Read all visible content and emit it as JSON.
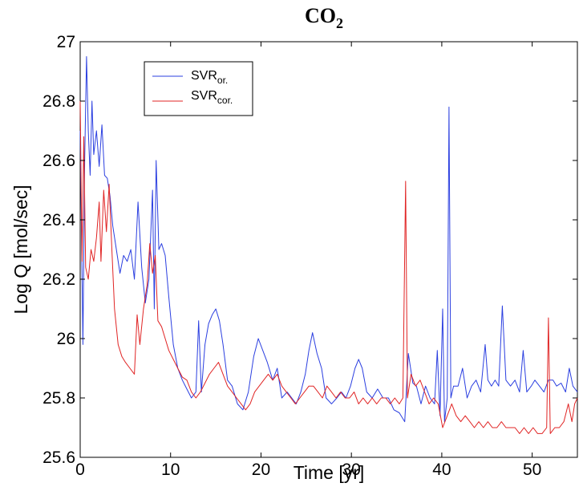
{
  "chart_data": {
    "type": "line",
    "title": "CO2",
    "title_main": "CO",
    "title_sub": "2",
    "xlabel": "Time [yr]",
    "ylabel": "Log Q [mol/sec]",
    "xlim": [
      0,
      55
    ],
    "ylim": [
      25.6,
      27
    ],
    "xticks": [
      0,
      10,
      20,
      30,
      40,
      50
    ],
    "yticks": [
      25.6,
      25.8,
      26,
      26.2,
      26.4,
      26.6,
      26.8,
      27
    ],
    "xtick_labels": [
      "0",
      "10",
      "20",
      "30",
      "40",
      "50"
    ],
    "ytick_labels": [
      "25.6",
      "25.8",
      "26",
      "26.2",
      "26.4",
      "26.6",
      "26.8",
      "27"
    ],
    "grid": false,
    "legend_position": "top-left",
    "series": [
      {
        "name": "SVR_or.",
        "legend_main": "SVR",
        "legend_sub": "or.",
        "color": "#2b3fe0",
        "points": [
          [
            0.0,
            26.7
          ],
          [
            0.3,
            25.98
          ],
          [
            0.5,
            26.6
          ],
          [
            0.7,
            26.95
          ],
          [
            0.9,
            26.7
          ],
          [
            1.1,
            26.55
          ],
          [
            1.3,
            26.8
          ],
          [
            1.5,
            26.62
          ],
          [
            1.8,
            26.7
          ],
          [
            2.1,
            26.58
          ],
          [
            2.4,
            26.72
          ],
          [
            2.7,
            26.55
          ],
          [
            3.0,
            26.54
          ],
          [
            3.3,
            26.48
          ],
          [
            3.6,
            26.38
          ],
          [
            4.0,
            26.3
          ],
          [
            4.4,
            26.22
          ],
          [
            4.8,
            26.28
          ],
          [
            5.2,
            26.26
          ],
          [
            5.6,
            26.3
          ],
          [
            6.0,
            26.2
          ],
          [
            6.4,
            26.46
          ],
          [
            6.8,
            26.24
          ],
          [
            7.2,
            26.12
          ],
          [
            7.6,
            26.2
          ],
          [
            8.0,
            26.5
          ],
          [
            8.2,
            26.1
          ],
          [
            8.4,
            26.6
          ],
          [
            8.7,
            26.3
          ],
          [
            9.0,
            26.32
          ],
          [
            9.4,
            26.28
          ],
          [
            9.8,
            26.14
          ],
          [
            10.3,
            25.98
          ],
          [
            10.8,
            25.9
          ],
          [
            11.3,
            25.86
          ],
          [
            11.8,
            25.83
          ],
          [
            12.3,
            25.8
          ],
          [
            12.8,
            25.82
          ],
          [
            13.1,
            26.06
          ],
          [
            13.4,
            25.82
          ],
          [
            13.8,
            25.98
          ],
          [
            14.2,
            26.05
          ],
          [
            14.6,
            26.08
          ],
          [
            15.0,
            26.1
          ],
          [
            15.4,
            26.06
          ],
          [
            15.8,
            25.98
          ],
          [
            16.3,
            25.86
          ],
          [
            16.8,
            25.84
          ],
          [
            17.4,
            25.78
          ],
          [
            18.0,
            25.76
          ],
          [
            18.6,
            25.82
          ],
          [
            19.2,
            25.94
          ],
          [
            19.7,
            26.0
          ],
          [
            20.2,
            25.96
          ],
          [
            20.7,
            25.92
          ],
          [
            21.3,
            25.86
          ],
          [
            21.8,
            25.9
          ],
          [
            22.3,
            25.8
          ],
          [
            22.9,
            25.82
          ],
          [
            23.4,
            25.8
          ],
          [
            23.9,
            25.78
          ],
          [
            24.4,
            25.82
          ],
          [
            24.9,
            25.88
          ],
          [
            25.3,
            25.96
          ],
          [
            25.7,
            26.02
          ],
          [
            26.2,
            25.95
          ],
          [
            26.7,
            25.9
          ],
          [
            27.2,
            25.8
          ],
          [
            27.8,
            25.78
          ],
          [
            28.4,
            25.8
          ],
          [
            28.9,
            25.82
          ],
          [
            29.4,
            25.8
          ],
          [
            29.9,
            25.84
          ],
          [
            30.4,
            25.9
          ],
          [
            30.8,
            25.93
          ],
          [
            31.2,
            25.9
          ],
          [
            31.7,
            25.82
          ],
          [
            32.3,
            25.8
          ],
          [
            32.9,
            25.83
          ],
          [
            33.5,
            25.8
          ],
          [
            34.1,
            25.8
          ],
          [
            34.7,
            25.76
          ],
          [
            35.3,
            25.75
          ],
          [
            35.9,
            25.72
          ],
          [
            36.3,
            25.95
          ],
          [
            36.8,
            25.85
          ],
          [
            37.2,
            25.84
          ],
          [
            37.7,
            25.78
          ],
          [
            38.2,
            25.84
          ],
          [
            38.7,
            25.8
          ],
          [
            39.2,
            25.78
          ],
          [
            39.5,
            25.96
          ],
          [
            39.8,
            25.74
          ],
          [
            40.1,
            26.1
          ],
          [
            40.3,
            25.72
          ],
          [
            40.6,
            25.8
          ],
          [
            40.8,
            26.78
          ],
          [
            41.0,
            25.8
          ],
          [
            41.3,
            25.84
          ],
          [
            41.8,
            25.84
          ],
          [
            42.3,
            25.9
          ],
          [
            42.8,
            25.8
          ],
          [
            43.3,
            25.84
          ],
          [
            43.8,
            25.86
          ],
          [
            44.3,
            25.82
          ],
          [
            44.8,
            25.98
          ],
          [
            45.1,
            25.86
          ],
          [
            45.5,
            25.84
          ],
          [
            45.9,
            25.86
          ],
          [
            46.3,
            25.84
          ],
          [
            46.7,
            26.11
          ],
          [
            47.1,
            25.86
          ],
          [
            47.6,
            25.84
          ],
          [
            48.1,
            25.86
          ],
          [
            48.6,
            25.82
          ],
          [
            49.0,
            25.96
          ],
          [
            49.4,
            25.82
          ],
          [
            49.9,
            25.84
          ],
          [
            50.3,
            25.86
          ],
          [
            50.8,
            25.84
          ],
          [
            51.3,
            25.82
          ],
          [
            51.8,
            25.86
          ],
          [
            52.3,
            25.86
          ],
          [
            52.7,
            25.84
          ],
          [
            53.2,
            25.85
          ],
          [
            53.7,
            25.82
          ],
          [
            54.1,
            25.9
          ],
          [
            54.5,
            25.84
          ],
          [
            55.0,
            25.82
          ]
        ]
      },
      {
        "name": "SVR_cor.",
        "legend_main": "SVR",
        "legend_sub": "cor.",
        "color": "#e02424",
        "points": [
          [
            0.0,
            26.8
          ],
          [
            0.2,
            26.26
          ],
          [
            0.4,
            26.68
          ],
          [
            0.6,
            26.24
          ],
          [
            0.9,
            26.2
          ],
          [
            1.2,
            26.3
          ],
          [
            1.5,
            26.26
          ],
          [
            1.8,
            26.34
          ],
          [
            2.1,
            26.46
          ],
          [
            2.3,
            26.26
          ],
          [
            2.6,
            26.5
          ],
          [
            2.9,
            26.36
          ],
          [
            3.2,
            26.52
          ],
          [
            3.5,
            26.3
          ],
          [
            3.8,
            26.1
          ],
          [
            4.2,
            25.98
          ],
          [
            4.6,
            25.94
          ],
          [
            5.0,
            25.92
          ],
          [
            5.5,
            25.9
          ],
          [
            6.0,
            25.88
          ],
          [
            6.3,
            26.08
          ],
          [
            6.6,
            25.98
          ],
          [
            7.0,
            26.1
          ],
          [
            7.4,
            26.18
          ],
          [
            7.7,
            26.32
          ],
          [
            8.0,
            26.22
          ],
          [
            8.3,
            26.28
          ],
          [
            8.6,
            26.06
          ],
          [
            9.0,
            26.04
          ],
          [
            9.4,
            26.0
          ],
          [
            9.8,
            25.96
          ],
          [
            10.3,
            25.93
          ],
          [
            10.8,
            25.9
          ],
          [
            11.3,
            25.87
          ],
          [
            11.8,
            25.86
          ],
          [
            12.3,
            25.82
          ],
          [
            12.8,
            25.8
          ],
          [
            13.3,
            25.82
          ],
          [
            13.8,
            25.85
          ],
          [
            14.3,
            25.88
          ],
          [
            14.8,
            25.9
          ],
          [
            15.3,
            25.92
          ],
          [
            15.8,
            25.88
          ],
          [
            16.3,
            25.84
          ],
          [
            16.8,
            25.82
          ],
          [
            17.3,
            25.8
          ],
          [
            17.8,
            25.78
          ],
          [
            18.3,
            25.76
          ],
          [
            18.8,
            25.78
          ],
          [
            19.3,
            25.82
          ],
          [
            19.8,
            25.84
          ],
          [
            20.3,
            25.86
          ],
          [
            20.8,
            25.88
          ],
          [
            21.3,
            25.86
          ],
          [
            21.8,
            25.88
          ],
          [
            22.3,
            25.84
          ],
          [
            22.8,
            25.82
          ],
          [
            23.3,
            25.8
          ],
          [
            23.8,
            25.78
          ],
          [
            24.3,
            25.8
          ],
          [
            24.8,
            25.82
          ],
          [
            25.3,
            25.84
          ],
          [
            25.8,
            25.84
          ],
          [
            26.3,
            25.82
          ],
          [
            26.8,
            25.8
          ],
          [
            27.3,
            25.84
          ],
          [
            27.8,
            25.82
          ],
          [
            28.3,
            25.8
          ],
          [
            28.8,
            25.82
          ],
          [
            29.3,
            25.8
          ],
          [
            29.8,
            25.8
          ],
          [
            30.3,
            25.82
          ],
          [
            30.8,
            25.78
          ],
          [
            31.3,
            25.8
          ],
          [
            31.8,
            25.78
          ],
          [
            32.3,
            25.8
          ],
          [
            32.8,
            25.78
          ],
          [
            33.3,
            25.8
          ],
          [
            33.8,
            25.8
          ],
          [
            34.3,
            25.78
          ],
          [
            34.8,
            25.8
          ],
          [
            35.3,
            25.78
          ],
          [
            35.7,
            25.8
          ],
          [
            36.0,
            26.53
          ],
          [
            36.2,
            25.8
          ],
          [
            36.6,
            25.88
          ],
          [
            37.1,
            25.84
          ],
          [
            37.6,
            25.86
          ],
          [
            38.1,
            25.82
          ],
          [
            38.6,
            25.78
          ],
          [
            39.1,
            25.8
          ],
          [
            39.6,
            25.78
          ],
          [
            40.1,
            25.7
          ],
          [
            40.6,
            25.74
          ],
          [
            41.1,
            25.78
          ],
          [
            41.6,
            25.74
          ],
          [
            42.1,
            25.72
          ],
          [
            42.6,
            25.74
          ],
          [
            43.1,
            25.72
          ],
          [
            43.6,
            25.7
          ],
          [
            44.1,
            25.72
          ],
          [
            44.6,
            25.7
          ],
          [
            45.1,
            25.72
          ],
          [
            45.6,
            25.7
          ],
          [
            46.1,
            25.7
          ],
          [
            46.6,
            25.72
          ],
          [
            47.1,
            25.7
          ],
          [
            47.6,
            25.7
          ],
          [
            48.1,
            25.7
          ],
          [
            48.6,
            25.68
          ],
          [
            49.1,
            25.7
          ],
          [
            49.6,
            25.68
          ],
          [
            50.1,
            25.7
          ],
          [
            50.6,
            25.68
          ],
          [
            51.1,
            25.68
          ],
          [
            51.6,
            25.7
          ],
          [
            51.8,
            26.07
          ],
          [
            52.0,
            25.68
          ],
          [
            52.5,
            25.7
          ],
          [
            53.0,
            25.7
          ],
          [
            53.5,
            25.72
          ],
          [
            54.0,
            25.78
          ],
          [
            54.4,
            25.72
          ],
          [
            54.7,
            25.78
          ],
          [
            55.0,
            25.8
          ]
        ]
      }
    ]
  }
}
